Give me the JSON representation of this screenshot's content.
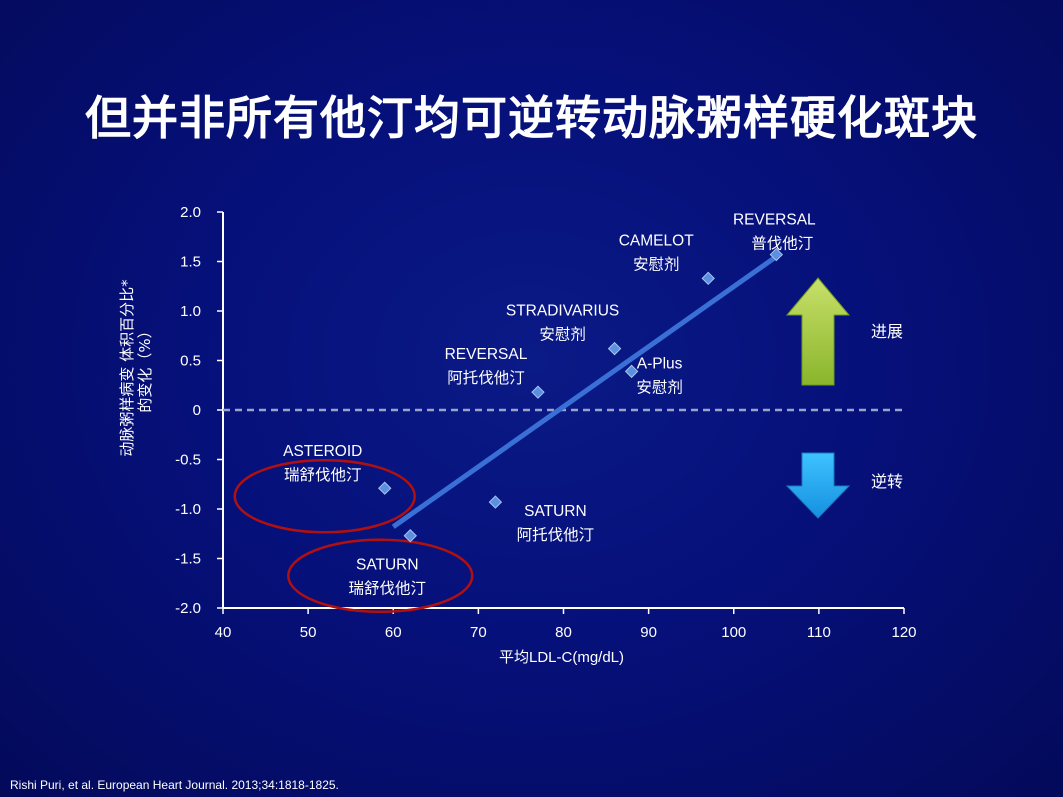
{
  "title": "但并非所有他汀均可逆转动脉粥样硬化斑块",
  "footer": "Rishi Puri, et al. European Heart Journal. 2013;34:1818-1825.",
  "colors": {
    "background": "#06107a",
    "axis": "#ffffff",
    "trend": "#3a6fd6",
    "point": "#5b8fe0",
    "circle": "#b01010",
    "up_arrow": "#9bc43a",
    "down_arrow": "#2ab0f0",
    "dashed_line": "#9aa4c8"
  },
  "chart_data": {
    "type": "scatter",
    "xlabel": "平均LDL-C(mg/dL)",
    "ylabel_lines": [
      "动脉粥样病变 体积百分比*",
      "的变化（%）"
    ],
    "xlim": [
      40,
      120
    ],
    "ylim": [
      -2.0,
      2.0
    ],
    "x_ticks": [
      40,
      50,
      60,
      70,
      80,
      90,
      100,
      110,
      120
    ],
    "x_tick_labels": [
      "40",
      "50",
      "60",
      "70",
      "80",
      "90",
      "100",
      "110",
      "120"
    ],
    "y_ticks": [
      2.0,
      1.5,
      1.0,
      0.5,
      0,
      -0.5,
      -1.0,
      -1.5,
      -2.0
    ],
    "y_tick_labels": [
      "2.0",
      "1.5",
      "1.0",
      "0.5",
      "0",
      "-0.5",
      "-1.0",
      "-1.5",
      "-2.0"
    ],
    "reference_line": {
      "y": 0,
      "style": "dashed"
    },
    "trend_line": {
      "from": [
        60,
        -1.18
      ],
      "to": [
        105,
        1.55
      ]
    },
    "points": [
      {
        "x": 105,
        "y": 1.57,
        "trial": "REVERSAL",
        "drug": "普伐他汀",
        "label_pos": "above"
      },
      {
        "x": 97,
        "y": 1.33,
        "trial": "CAMELOT",
        "drug": "安慰剂",
        "label_pos": "upper-left"
      },
      {
        "x": 86,
        "y": 0.62,
        "trial": "STRADIVARIUS",
        "drug": "安慰剂",
        "label_pos": "upper-left"
      },
      {
        "x": 88,
        "y": 0.39,
        "trial": "A-Plus",
        "drug": "安慰剂",
        "label_pos": "upper-right"
      },
      {
        "x": 77,
        "y": 0.18,
        "trial": "REVERSAL",
        "drug": "阿托伐他汀",
        "label_pos": "upper-left"
      },
      {
        "x": 59,
        "y": -0.79,
        "trial": "ASTEROID",
        "drug": "瑞舒伐他汀",
        "label_pos": "left",
        "highlight": true
      },
      {
        "x": 62,
        "y": -1.27,
        "trial": "SATURN",
        "drug": "瑞舒伐他汀",
        "label_pos": "below",
        "highlight": true
      },
      {
        "x": 72,
        "y": -0.93,
        "trial": "SATURN",
        "drug": "阿托伐他汀",
        "label_pos": "right"
      }
    ],
    "annotations": {
      "up": "进展",
      "down": "逆转"
    }
  }
}
